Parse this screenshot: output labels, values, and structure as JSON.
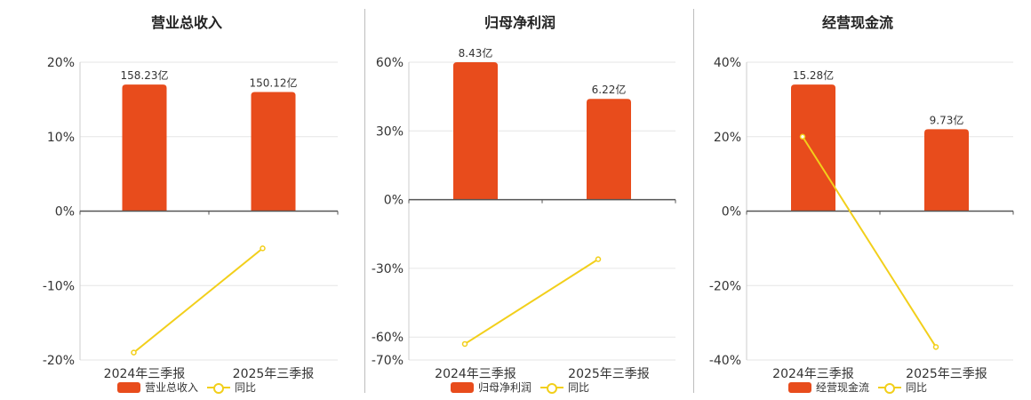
{
  "colors": {
    "bar": "#E84C1C",
    "line": "#F2CF1B",
    "grid": "#e6e6e6",
    "axis": "#555555",
    "text": "#333333"
  },
  "chart_data": [
    {
      "type": "bar+line",
      "title": "营业总收入",
      "categories": [
        "2024年三季报",
        "2025年三季报"
      ],
      "bar_series": {
        "name": "营业总收入",
        "values": [
          17,
          16
        ],
        "labels": [
          "158.23亿",
          "150.12亿"
        ]
      },
      "line_series": {
        "name": "同比",
        "values": [
          -19,
          -5
        ]
      },
      "ylim": [
        -20,
        20
      ],
      "yticks": [
        20,
        10,
        0,
        -10,
        -20
      ],
      "ytick_labels": [
        "20%",
        "10%",
        "0%",
        "-10%",
        "-20%"
      ],
      "grid": true
    },
    {
      "type": "bar+line",
      "title": "归母净利润",
      "categories": [
        "2024年三季报",
        "2025年三季报"
      ],
      "bar_series": {
        "name": "归母净利润",
        "values": [
          60,
          44
        ],
        "labels": [
          "8.43亿",
          "6.22亿"
        ]
      },
      "line_series": {
        "name": "同比",
        "values": [
          -63,
          -26
        ]
      },
      "ylim": [
        -70,
        60
      ],
      "yticks": [
        60,
        30,
        0,
        -30,
        -60,
        -70
      ],
      "ytick_labels": [
        "60%",
        "30%",
        "0%",
        "-30%",
        "-60%",
        "-70%"
      ],
      "grid": true
    },
    {
      "type": "bar+line",
      "title": "经营现金流",
      "categories": [
        "2024年三季报",
        "2025年三季报"
      ],
      "bar_series": {
        "name": "经营现金流",
        "values": [
          34,
          22
        ],
        "labels": [
          "15.28亿",
          "9.73亿"
        ]
      },
      "line_series": {
        "name": "同比",
        "values": [
          20,
          -36.5
        ]
      },
      "ylim": [
        -40,
        40
      ],
      "yticks": [
        40,
        20,
        0,
        -20,
        -40
      ],
      "ytick_labels": [
        "40%",
        "20%",
        "0%",
        "-20%",
        "-40%"
      ],
      "grid": true
    }
  ]
}
